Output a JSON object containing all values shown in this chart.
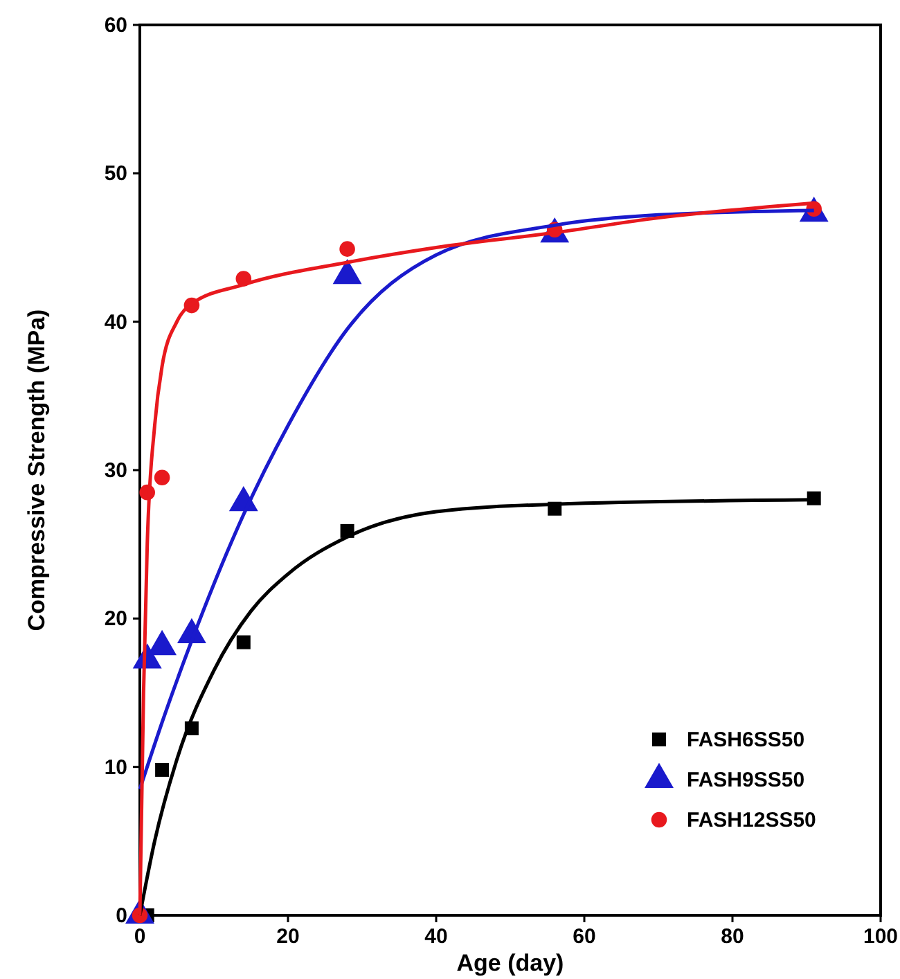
{
  "chart_data": {
    "type": "scatter",
    "xlabel": "Age (day)",
    "ylabel": "Compressive Strength (MPa)",
    "xlim": [
      0,
      100
    ],
    "ylim": [
      0,
      60
    ],
    "xticks": [
      0,
      20,
      40,
      60,
      80,
      100
    ],
    "yticks": [
      0,
      10,
      20,
      30,
      40,
      50,
      60
    ],
    "grid": false,
    "legend": "bottom right",
    "series": [
      {
        "name": "FASH6SS50",
        "color": "#000000",
        "marker": "square",
        "x": [
          1,
          3,
          7,
          14,
          28,
          56,
          91
        ],
        "values": [
          0,
          9.8,
          12.6,
          18.4,
          25.9,
          27.4,
          28.1
        ]
      },
      {
        "name": "FASH9SS50",
        "color": "#1a1acc",
        "marker": "triangle",
        "x": [
          0,
          1,
          3,
          7,
          14,
          28,
          56,
          91
        ],
        "values": [
          0,
          17.2,
          18.1,
          18.9,
          27.8,
          43.1,
          45.9,
          47.3
        ]
      },
      {
        "name": "FASH12SS50",
        "color": "#e8191e",
        "marker": "circle",
        "x": [
          0,
          1,
          3,
          7,
          14,
          28,
          56,
          91
        ],
        "values": [
          0,
          28.5,
          29.5,
          41.1,
          42.9,
          44.9,
          46.2,
          47.6
        ]
      },
      {
        "type": "line",
        "color": "#000000",
        "marker": "none",
        "x": [
          0,
          2,
          5,
          10,
          15,
          20,
          28,
          40,
          56,
          91
        ],
        "values": [
          0,
          5,
          10.5,
          16.5,
          20.5,
          23,
          25.5,
          27.2,
          27.7,
          28
        ]
      },
      {
        "type": "line",
        "color": "#1a1acc",
        "marker": "none",
        "x": [
          0,
          3,
          7,
          14,
          20,
          28,
          40,
          56,
          70,
          91
        ],
        "values": [
          8.5,
          13,
          18.5,
          27,
          33,
          39.5,
          44.5,
          46.5,
          47.2,
          47.5
        ]
      },
      {
        "type": "line",
        "color": "#e8191e",
        "marker": "none",
        "x": [
          0,
          0.5,
          1,
          2,
          3,
          5,
          7,
          14,
          28,
          40,
          56,
          70,
          91
        ],
        "values": [
          0,
          15,
          25,
          33,
          37,
          40,
          41.2,
          42.5,
          44,
          45,
          46,
          47,
          48
        ]
      }
    ]
  }
}
